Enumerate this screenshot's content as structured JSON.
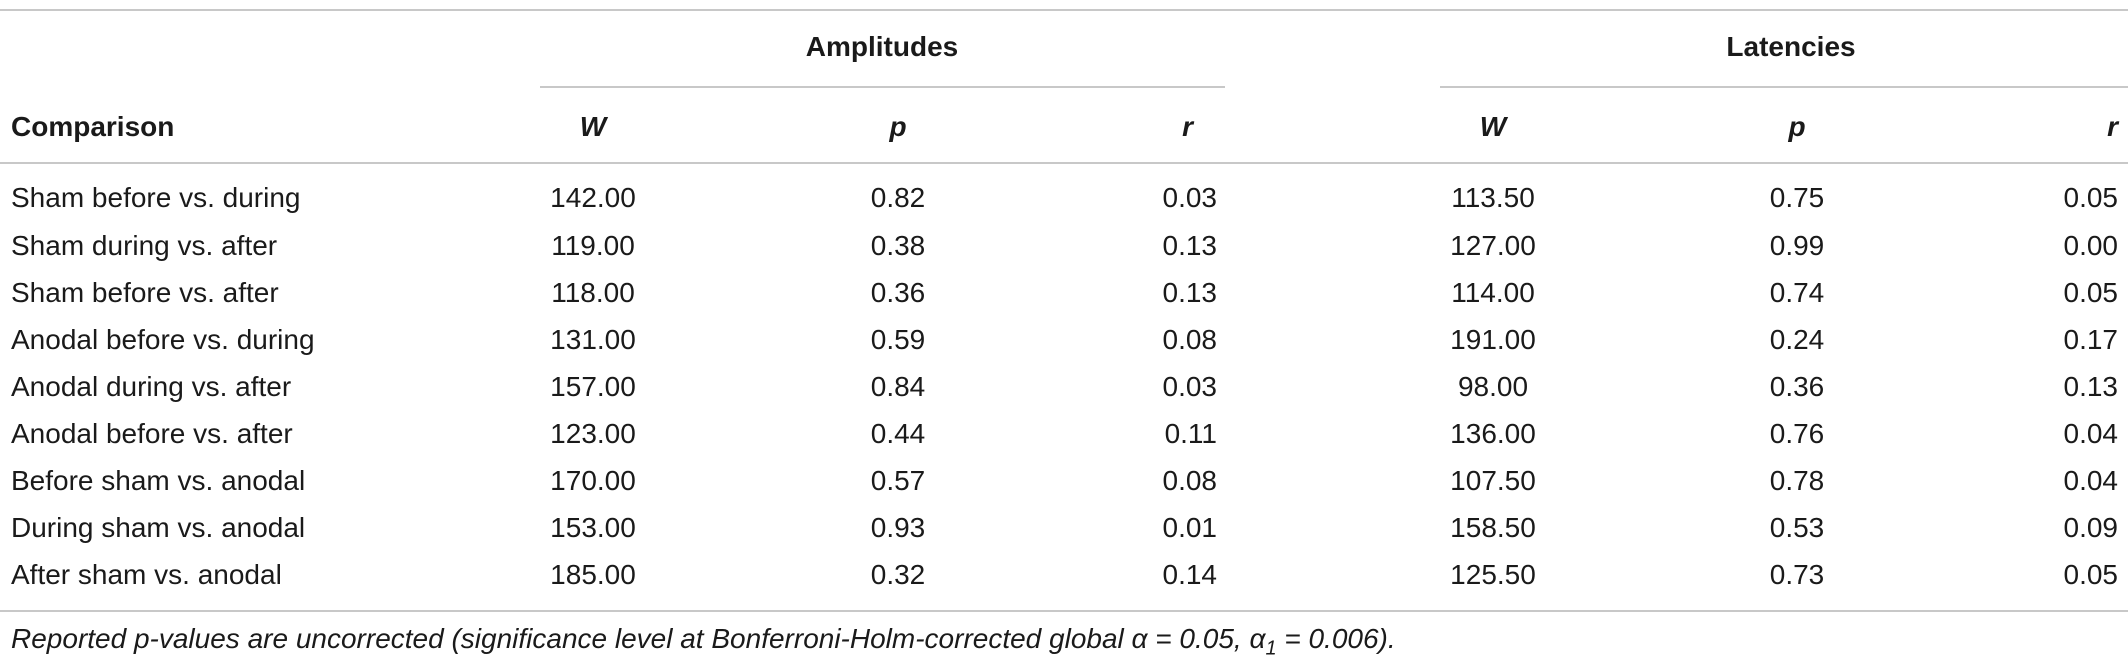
{
  "table": {
    "group_headers": {
      "amplitudes": "Amplitudes",
      "latencies": "Latencies"
    },
    "column_headers": {
      "comparison": "Comparison",
      "amp_w": "W",
      "amp_p": "p",
      "amp_r": "r",
      "lat_w": "W",
      "lat_p": "p",
      "lat_r": "r"
    },
    "rows": [
      {
        "comparison": "Sham before vs. during",
        "amp_w": "142.00",
        "amp_p": "0.82",
        "amp_r": "0.03",
        "lat_w": "113.50",
        "lat_p": "0.75",
        "lat_r": "0.05"
      },
      {
        "comparison": "Sham during vs. after",
        "amp_w": "119.00",
        "amp_p": "0.38",
        "amp_r": "0.13",
        "lat_w": "127.00",
        "lat_p": "0.99",
        "lat_r": "0.00"
      },
      {
        "comparison": "Sham before vs. after",
        "amp_w": "118.00",
        "amp_p": "0.36",
        "amp_r": "0.13",
        "lat_w": "114.00",
        "lat_p": "0.74",
        "lat_r": "0.05"
      },
      {
        "comparison": "Anodal before vs. during",
        "amp_w": "131.00",
        "amp_p": "0.59",
        "amp_r": "0.08",
        "lat_w": "191.00",
        "lat_p": "0.24",
        "lat_r": "0.17"
      },
      {
        "comparison": "Anodal during vs. after",
        "amp_w": "157.00",
        "amp_p": "0.84",
        "amp_r": "0.03",
        "lat_w": "98.00",
        "lat_p": "0.36",
        "lat_r": "0.13"
      },
      {
        "comparison": "Anodal before vs. after",
        "amp_w": "123.00",
        "amp_p": "0.44",
        "amp_r": "0.11",
        "lat_w": "136.00",
        "lat_p": "0.76",
        "lat_r": "0.04"
      },
      {
        "comparison": "Before sham vs. anodal",
        "amp_w": "170.00",
        "amp_p": "0.57",
        "amp_r": "0.08",
        "lat_w": "107.50",
        "lat_p": "0.78",
        "lat_r": "0.04"
      },
      {
        "comparison": "During sham vs. anodal",
        "amp_w": "153.00",
        "amp_p": "0.93",
        "amp_r": "0.01",
        "lat_w": "158.50",
        "lat_p": "0.53",
        "lat_r": "0.09"
      },
      {
        "comparison": "After sham vs. anodal",
        "amp_w": "185.00",
        "amp_p": "0.32",
        "amp_r": "0.14",
        "lat_w": "125.50",
        "lat_p": "0.73",
        "lat_r": "0.05"
      }
    ],
    "footnote": {
      "text_before": "Reported p-values are uncorrected (significance level at Bonferroni-Holm-corrected global α = 0.05, α",
      "subscript": "1",
      "text_after": " = 0.006)."
    }
  }
}
